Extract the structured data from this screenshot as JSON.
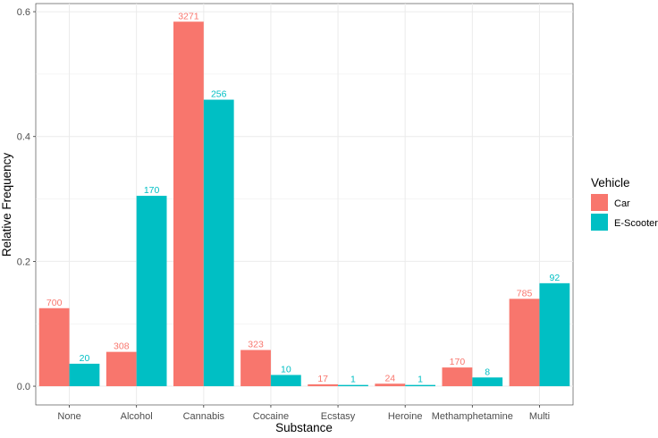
{
  "chart_data": {
    "type": "bar",
    "xlabel": "Substance",
    "ylabel": "Relative Frequency",
    "categories": [
      "None",
      "Alcohol",
      "Cannabis",
      "Cocaine",
      "Ecstasy",
      "Heroine",
      "Methamphetamine",
      "Multi"
    ],
    "yticks": [
      "0.0",
      "0.2",
      "0.4",
      "0.6"
    ],
    "ylim": [
      -0.03,
      0.613
    ],
    "grid": true,
    "legend": {
      "title": "Vehicle",
      "position": "right"
    },
    "series": [
      {
        "name": "Car",
        "color": "#F8766D",
        "values": [
          0.125,
          0.055,
          0.584,
          0.058,
          0.003,
          0.004,
          0.03,
          0.14
        ],
        "labels": [
          "700",
          "308",
          "3271",
          "323",
          "17",
          "24",
          "170",
          "785"
        ]
      },
      {
        "name": "E-Scooter",
        "color": "#00BFC4",
        "values": [
          0.036,
          0.305,
          0.459,
          0.018,
          0.002,
          0.002,
          0.014,
          0.165
        ],
        "labels": [
          "20",
          "170",
          "256",
          "10",
          "1",
          "1",
          "8",
          "92"
        ]
      }
    ]
  }
}
